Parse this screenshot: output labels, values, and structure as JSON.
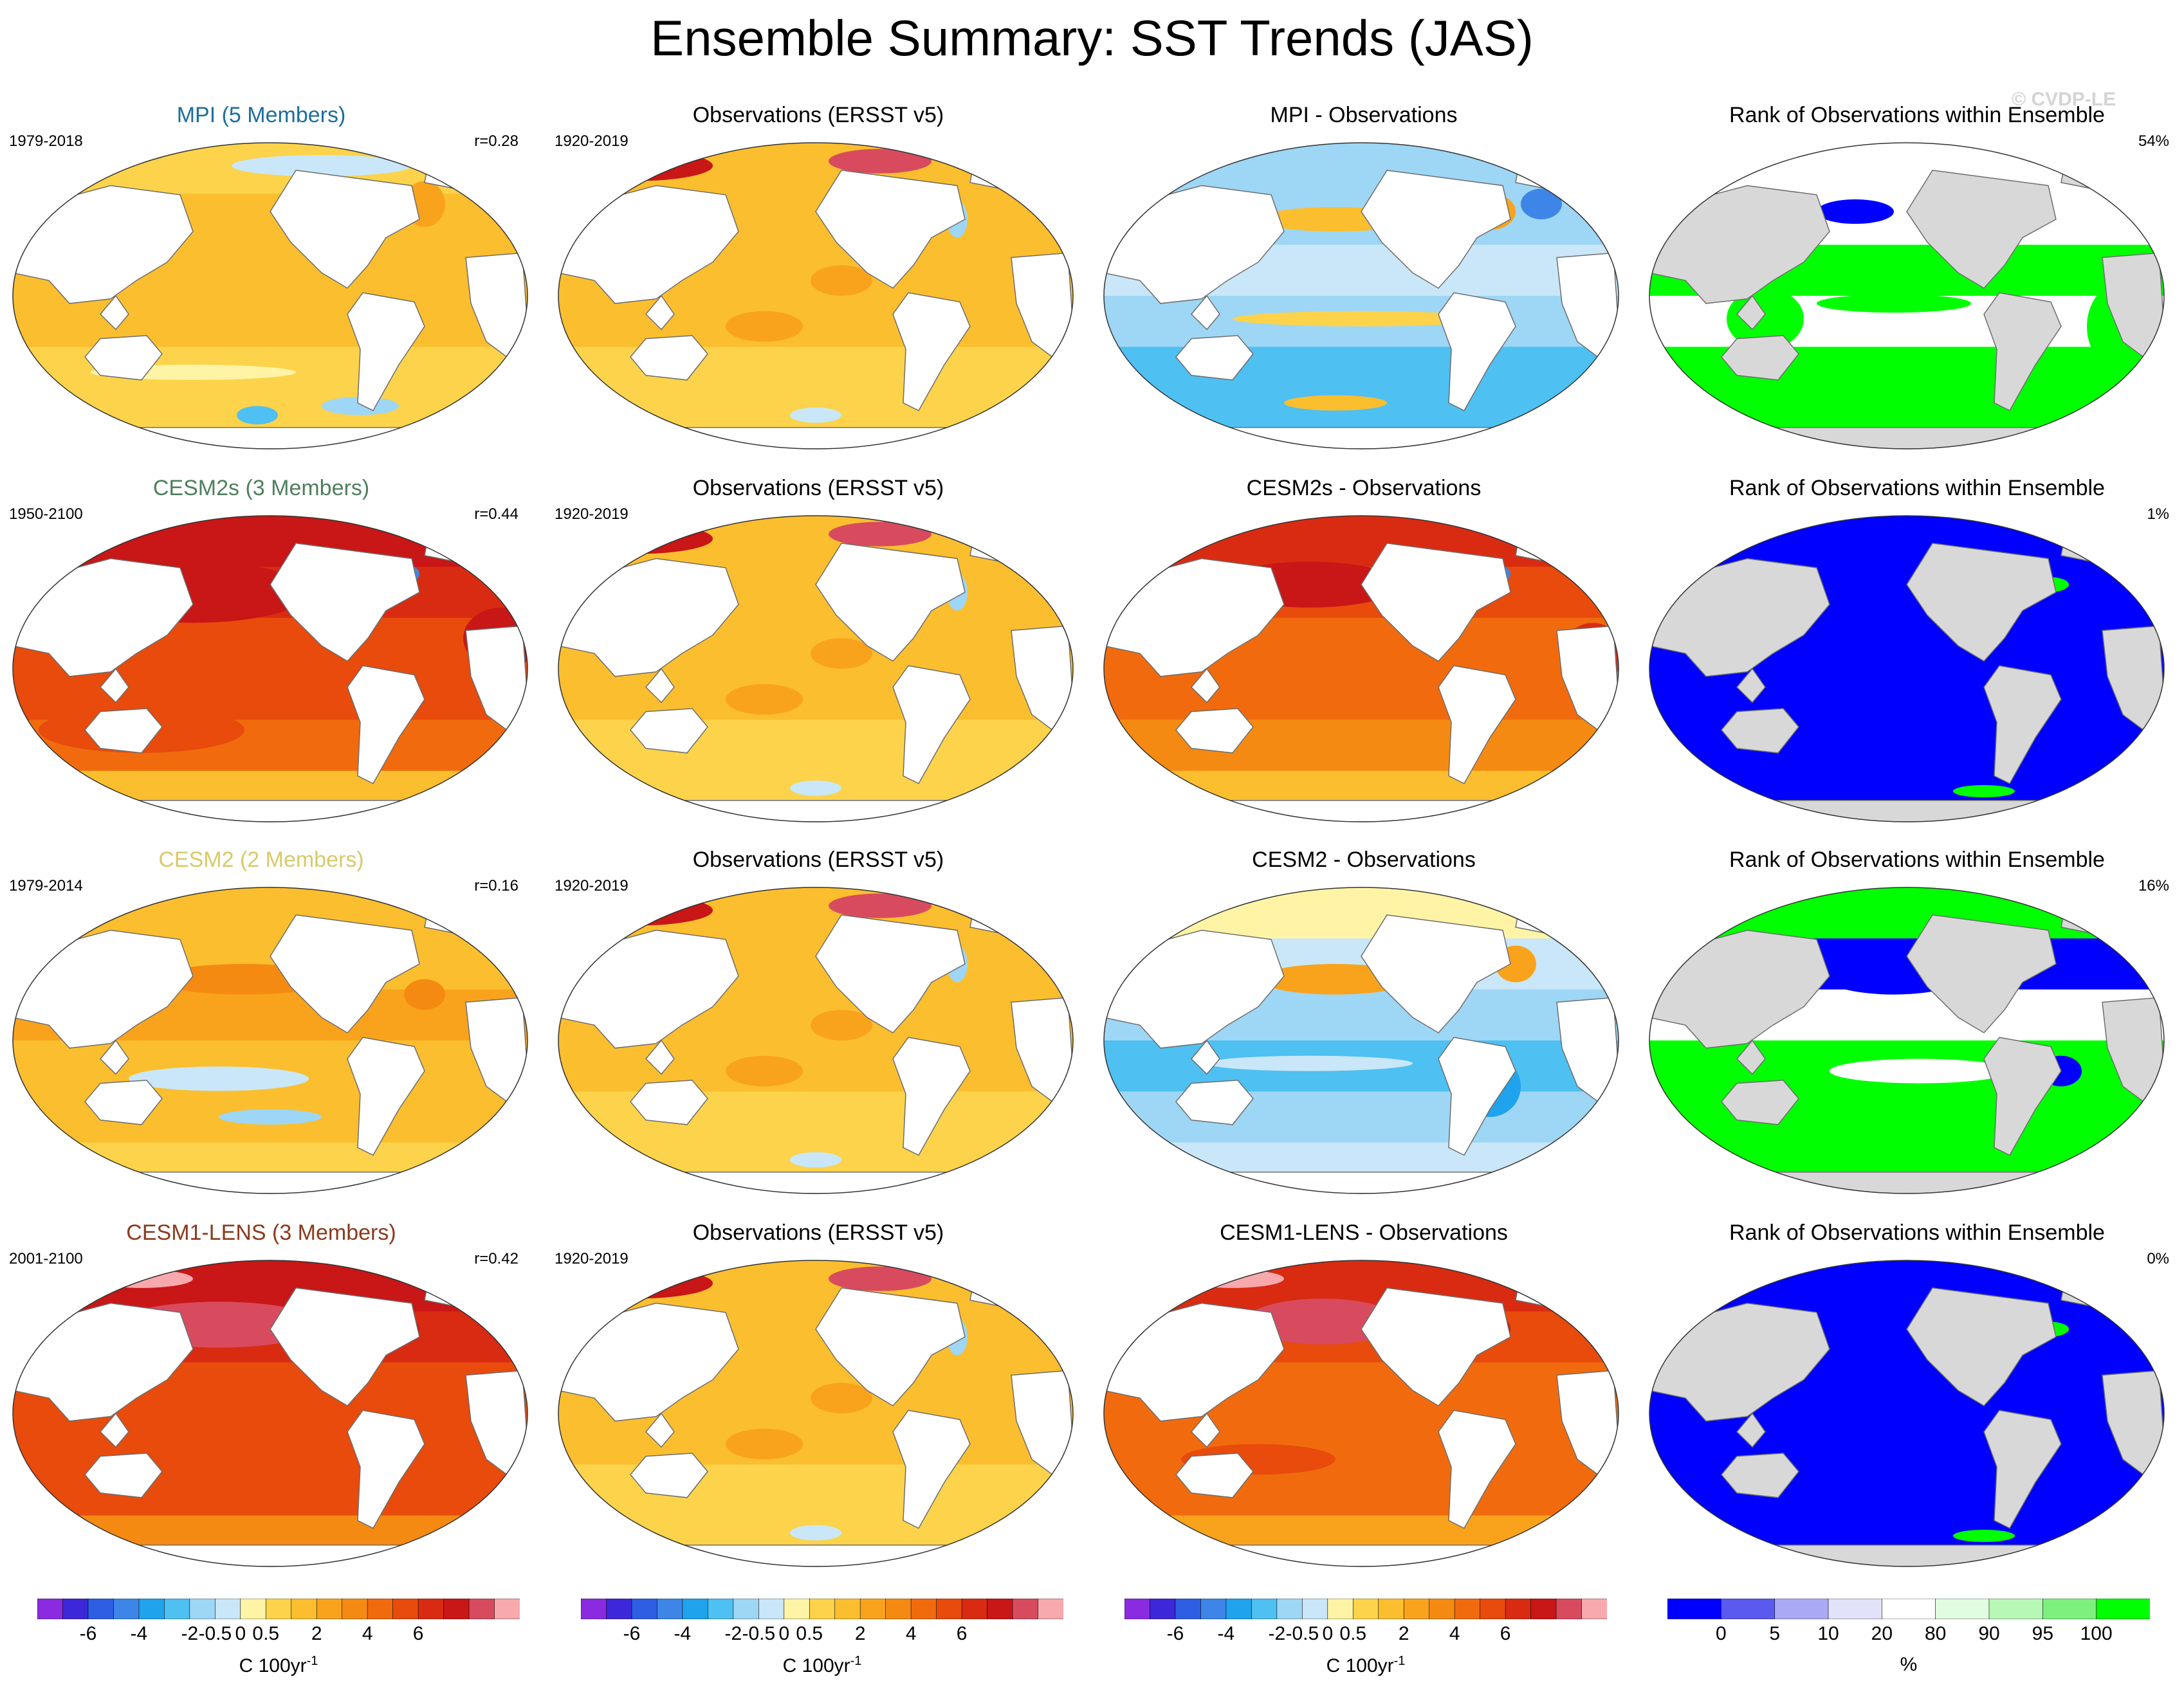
{
  "title": "Ensemble Summary: SST Trends (JAS)",
  "watermark": "© CVDP-LE",
  "colors": {
    "diverging": [
      "#8a2be2",
      "#3c28d9",
      "#2d5ee3",
      "#3d86e8",
      "#1fa3ec",
      "#4ec0f2",
      "#9ed6f5",
      "#c9e7f8",
      "#fff4a6",
      "#fcd34a",
      "#fbbe2e",
      "#f9a31d",
      "#f58a12",
      "#f16b0e",
      "#e84b0b",
      "#d92b12",
      "#c91616",
      "#d84b5e",
      "#f8a9ad"
    ],
    "rank": [
      "#0000ff",
      "#5a5af0",
      "#a9a9f4",
      "#e2e2fb",
      "#ffffff",
      "#e1fde1",
      "#b7f8b7",
      "#7ef07e",
      "#00ff00"
    ],
    "land": "#ffffff",
    "land_rank": "#d8d8d8"
  },
  "rows": [
    {
      "model": {
        "title": "MPI (5 Members)",
        "title_color": "#1c6f9c",
        "period": "1979-2018",
        "corr": "r=0.28",
        "palette": "trend",
        "field": "mpi_trend"
      },
      "obs": {
        "title": "Observations (ERSST v5)",
        "period": "1920-2019",
        "palette": "trend",
        "field": "obs_trend"
      },
      "diff": {
        "title": "MPI - Observations",
        "palette": "trend",
        "field": "mpi_diff"
      },
      "rank": {
        "title": "Rank of Observations within Ensemble",
        "pct": "54%",
        "palette": "rank",
        "field": "mixed"
      }
    },
    {
      "model": {
        "title": "CESM2s (3 Members)",
        "title_color": "#4e7f5c",
        "period": "1950-2100",
        "corr": "r=0.44",
        "palette": "trend",
        "field": "cesm2s_trend"
      },
      "obs": {
        "title": "Observations (ERSST v5)",
        "period": "1920-2019",
        "palette": "trend",
        "field": "obs_trend"
      },
      "diff": {
        "title": "CESM2s - Observations",
        "palette": "trend",
        "field": "cesm2s_diff"
      },
      "rank": {
        "title": "Rank of Observations within Ensemble",
        "pct": "1%",
        "palette": "rank",
        "field": "low"
      }
    },
    {
      "model": {
        "title": "CESM2 (2 Members)",
        "title_color": "#d9c96b",
        "period": "1979-2014",
        "corr": "r=0.16",
        "palette": "trend",
        "field": "cesm2_trend"
      },
      "obs": {
        "title": "Observations (ERSST v5)",
        "period": "1920-2019",
        "palette": "trend",
        "field": "obs_trend"
      },
      "diff": {
        "title": "CESM2 - Observations",
        "palette": "trend",
        "field": "cesm2_diff"
      },
      "rank": {
        "title": "Rank of Observations within Ensemble",
        "pct": "16%",
        "palette": "rank",
        "field": "mixed2"
      }
    },
    {
      "model": {
        "title": "CESM1-LENS (3 Members)",
        "title_color": "#8b3a1e",
        "period": "2001-2100",
        "corr": "r=0.42",
        "palette": "trend",
        "field": "cesm1_trend"
      },
      "obs": {
        "title": "Observations (ERSST v5)",
        "period": "1920-2019",
        "palette": "trend",
        "field": "obs_trend"
      },
      "diff": {
        "title": "CESM1-LENS - Observations",
        "palette": "trend",
        "field": "cesm1_diff"
      },
      "rank": {
        "title": "Rank of Observations within Ensemble",
        "pct": "0%",
        "palette": "rank",
        "field": "low"
      }
    }
  ],
  "colorbars": [
    {
      "type": "trend",
      "labels": [
        "-6",
        "-4",
        "-2",
        "-0.5",
        "0",
        "0.5",
        "2",
        "4",
        "6"
      ],
      "unit_base": "C 100yr",
      "unit_sup": "-1"
    },
    {
      "type": "trend",
      "labels": [
        "-6",
        "-4",
        "-2",
        "-0.5",
        "0",
        "0.5",
        "2",
        "4",
        "6"
      ],
      "unit_base": "C 100yr",
      "unit_sup": "-1"
    },
    {
      "type": "trend",
      "labels": [
        "-6",
        "-4",
        "-2",
        "-0.5",
        "0",
        "0.5",
        "2",
        "4",
        "6"
      ],
      "unit_base": "C 100yr",
      "unit_sup": "-1"
    },
    {
      "type": "rank",
      "labels": [
        "0",
        "5",
        "10",
        "20",
        "80",
        "90",
        "95",
        "100"
      ],
      "unit_base": "%",
      "unit_sup": ""
    }
  ],
  "chart_data": {
    "type": "heatmap",
    "title": "Ensemble Summary: SST Trends (JAS)",
    "projection": "Robinson (Pacific-centered)",
    "trend_levels": [
      -6,
      -5,
      -4,
      -3,
      -2,
      -1,
      -0.5,
      -0.25,
      0,
      0.25,
      0.5,
      1,
      2,
      3,
      4,
      5,
      6,
      7
    ],
    "rank_levels": [
      0,
      5,
      10,
      20,
      80,
      90,
      95,
      100
    ],
    "units_trend": "C 100yr-1",
    "units_rank": "%",
    "panels": [
      {
        "row": "MPI (5 Members)",
        "model_period": "1979-2018",
        "obs_period": "1920-2019",
        "pattern_correlation": 0.28,
        "rank_pct": 54
      },
      {
        "row": "CESM2s (3 Members)",
        "model_period": "1950-2100",
        "obs_period": "1920-2019",
        "pattern_correlation": 0.44,
        "rank_pct": 1
      },
      {
        "row": "CESM2 (2 Members)",
        "model_period": "1979-2014",
        "obs_period": "1920-2019",
        "pattern_correlation": 0.16,
        "rank_pct": 16
      },
      {
        "row": "CESM1-LENS (3 Members)",
        "model_period": "2001-2100",
        "obs_period": "1920-2019",
        "pattern_correlation": 0.42,
        "rank_pct": 0
      }
    ]
  }
}
